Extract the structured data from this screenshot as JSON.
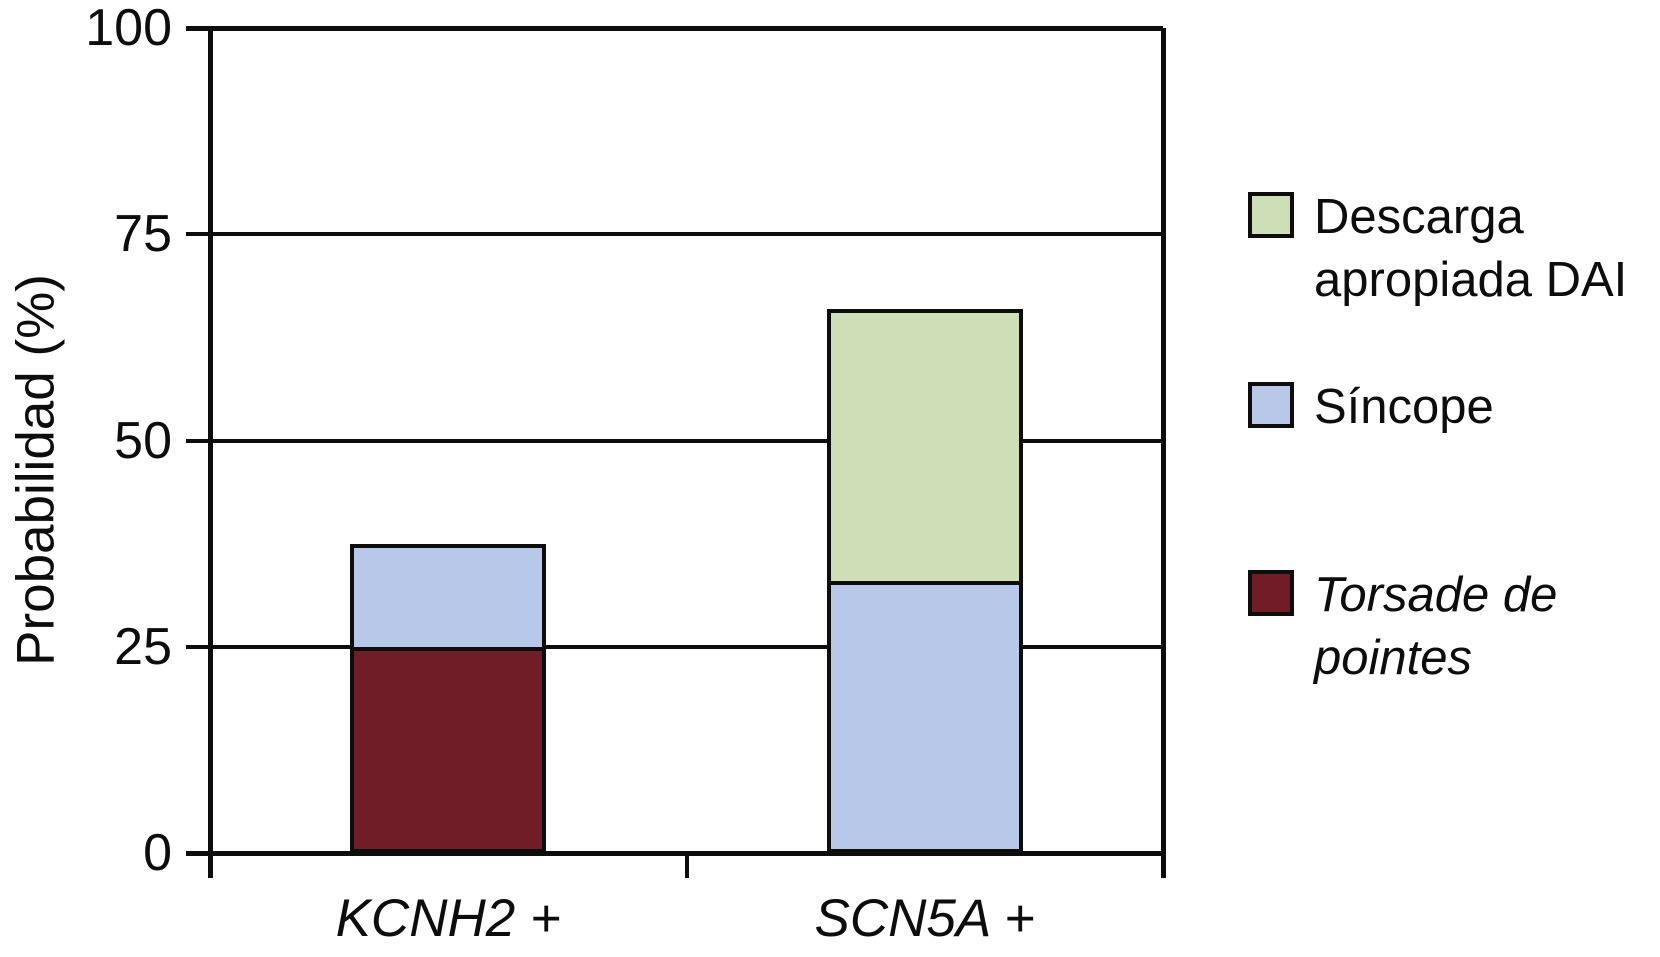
{
  "chart_data": {
    "type": "bar",
    "stacked": true,
    "title": "",
    "xlabel": "",
    "ylabel": "Probabilidad (%)",
    "ylim": [
      0,
      100
    ],
    "yticks": [
      0,
      25,
      50,
      75,
      100
    ],
    "grid": true,
    "legend_position": "right",
    "categories": [
      "KCNH2 +",
      "SCN5A +"
    ],
    "series": [
      {
        "name": "Torsade de pointes",
        "color": "#701D27",
        "values": [
          25,
          0
        ]
      },
      {
        "name": "Síncope",
        "color": "#B7C8E8",
        "values": [
          12.5,
          33
        ]
      },
      {
        "name": "Descarga apropiada DAI",
        "color": "#CEDFB7",
        "values": [
          0,
          33
        ]
      }
    ],
    "bar_totals": [
      37.5,
      66
    ]
  },
  "legend": {
    "items": [
      {
        "label": "Descarga apropiada DAI",
        "color": "#CEDFB7",
        "italic": false
      },
      {
        "label": "Síncope",
        "color": "#B7C8E8",
        "italic": false
      },
      {
        "label": "Torsade de pointes",
        "color": "#701D27",
        "italic": true
      }
    ]
  }
}
